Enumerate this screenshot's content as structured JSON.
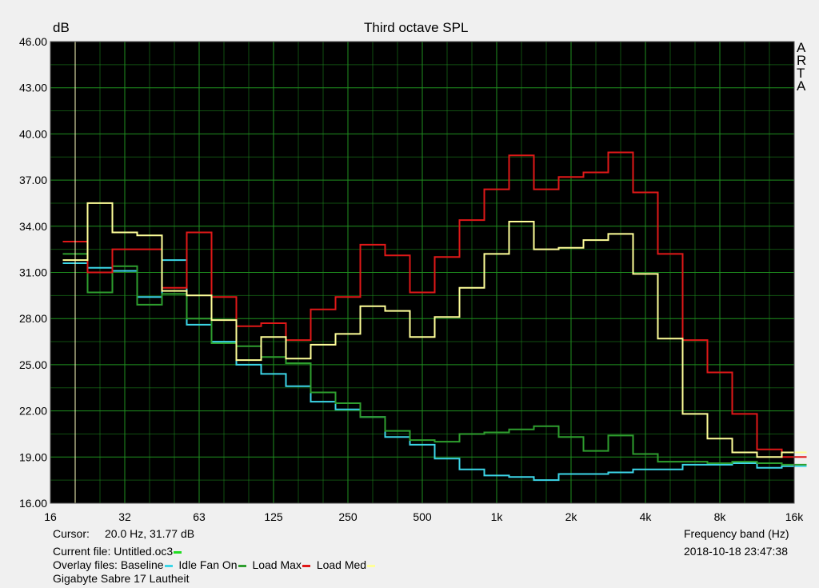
{
  "chart_data": {
    "type": "line",
    "title": "Third octave SPL",
    "ylabel": "dB",
    "xlabel": "Frequency band (Hz)",
    "watermark": [
      "A",
      "R",
      "T",
      "A"
    ],
    "ylim": [
      16,
      46
    ],
    "yticks": [
      "16.00",
      "19.00",
      "22.00",
      "25.00",
      "28.00",
      "31.00",
      "34.00",
      "37.00",
      "40.00",
      "43.00",
      "46.00"
    ],
    "xticks": [
      "16",
      "32",
      "63",
      "125",
      "250",
      "500",
      "1k",
      "2k",
      "4k",
      "8k",
      "16k"
    ],
    "x_bands": [
      "20",
      "25",
      "31.5",
      "40",
      "50",
      "63",
      "80",
      "100",
      "125",
      "160",
      "200",
      "250",
      "315",
      "400",
      "500",
      "630",
      "800",
      "1k",
      "1.25k",
      "1.6k",
      "2k",
      "2.5k",
      "3.15k",
      "4k",
      "5k",
      "6.3k",
      "8k",
      "10k",
      "12.5k",
      "16k"
    ],
    "grid": true,
    "background": "#000000",
    "grid_color": "#1f8f1f",
    "series": [
      {
        "name": "Baseline",
        "color": "#3cd6e8",
        "values": [
          31.6,
          31.3,
          31.1,
          29.4,
          31.8,
          27.6,
          26.5,
          25.0,
          24.4,
          23.6,
          22.6,
          22.1,
          21.6,
          20.3,
          19.8,
          18.9,
          18.2,
          17.8,
          17.7,
          17.5,
          17.9,
          17.9,
          18.0,
          18.2,
          18.2,
          18.5,
          18.5,
          18.6,
          18.3,
          18.4
        ]
      },
      {
        "name": "Idle Fan On",
        "color": "#2e9e2e",
        "values": [
          32.2,
          29.7,
          31.4,
          28.9,
          29.6,
          28.0,
          26.4,
          26.2,
          25.5,
          25.1,
          23.2,
          22.5,
          21.6,
          20.7,
          20.1,
          20.0,
          20.5,
          20.6,
          20.8,
          21.0,
          20.3,
          19.4,
          20.4,
          19.2,
          18.7,
          18.7,
          18.6,
          18.7,
          18.6,
          18.5
        ]
      },
      {
        "name": "Load Max",
        "color": "#e01818",
        "values": [
          33.0,
          31.0,
          32.5,
          32.5,
          30.0,
          33.6,
          29.4,
          27.5,
          27.7,
          26.6,
          28.6,
          29.4,
          32.8,
          32.1,
          29.7,
          32.0,
          34.4,
          36.4,
          38.6,
          36.4,
          37.2,
          37.5,
          38.8,
          36.2,
          32.2,
          26.6,
          24.5,
          21.8,
          19.5,
          19.0
        ]
      },
      {
        "name": "Load Med",
        "color": "#ffff99",
        "values": [
          31.8,
          35.5,
          33.6,
          33.4,
          29.8,
          29.5,
          27.9,
          25.3,
          26.8,
          25.4,
          26.3,
          27.0,
          28.8,
          28.5,
          26.8,
          28.1,
          30.0,
          32.2,
          34.3,
          32.5,
          32.6,
          33.1,
          33.5,
          30.9,
          26.7,
          21.8,
          20.2,
          19.3,
          19.0,
          19.3
        ]
      }
    ]
  },
  "info": {
    "cursor_label": "Cursor:",
    "cursor_value": "20.0 Hz, 31.77 dB",
    "frequency_band": "Frequency band (Hz)",
    "current_file_label": "Current file: Untitled.oc3",
    "current_file_color": "#22dd22",
    "timestamp": "2018-10-18  23:47:38",
    "overlay_label": "Overlay files:",
    "device": "Gigabyte Sabre 17 Lautheit"
  }
}
